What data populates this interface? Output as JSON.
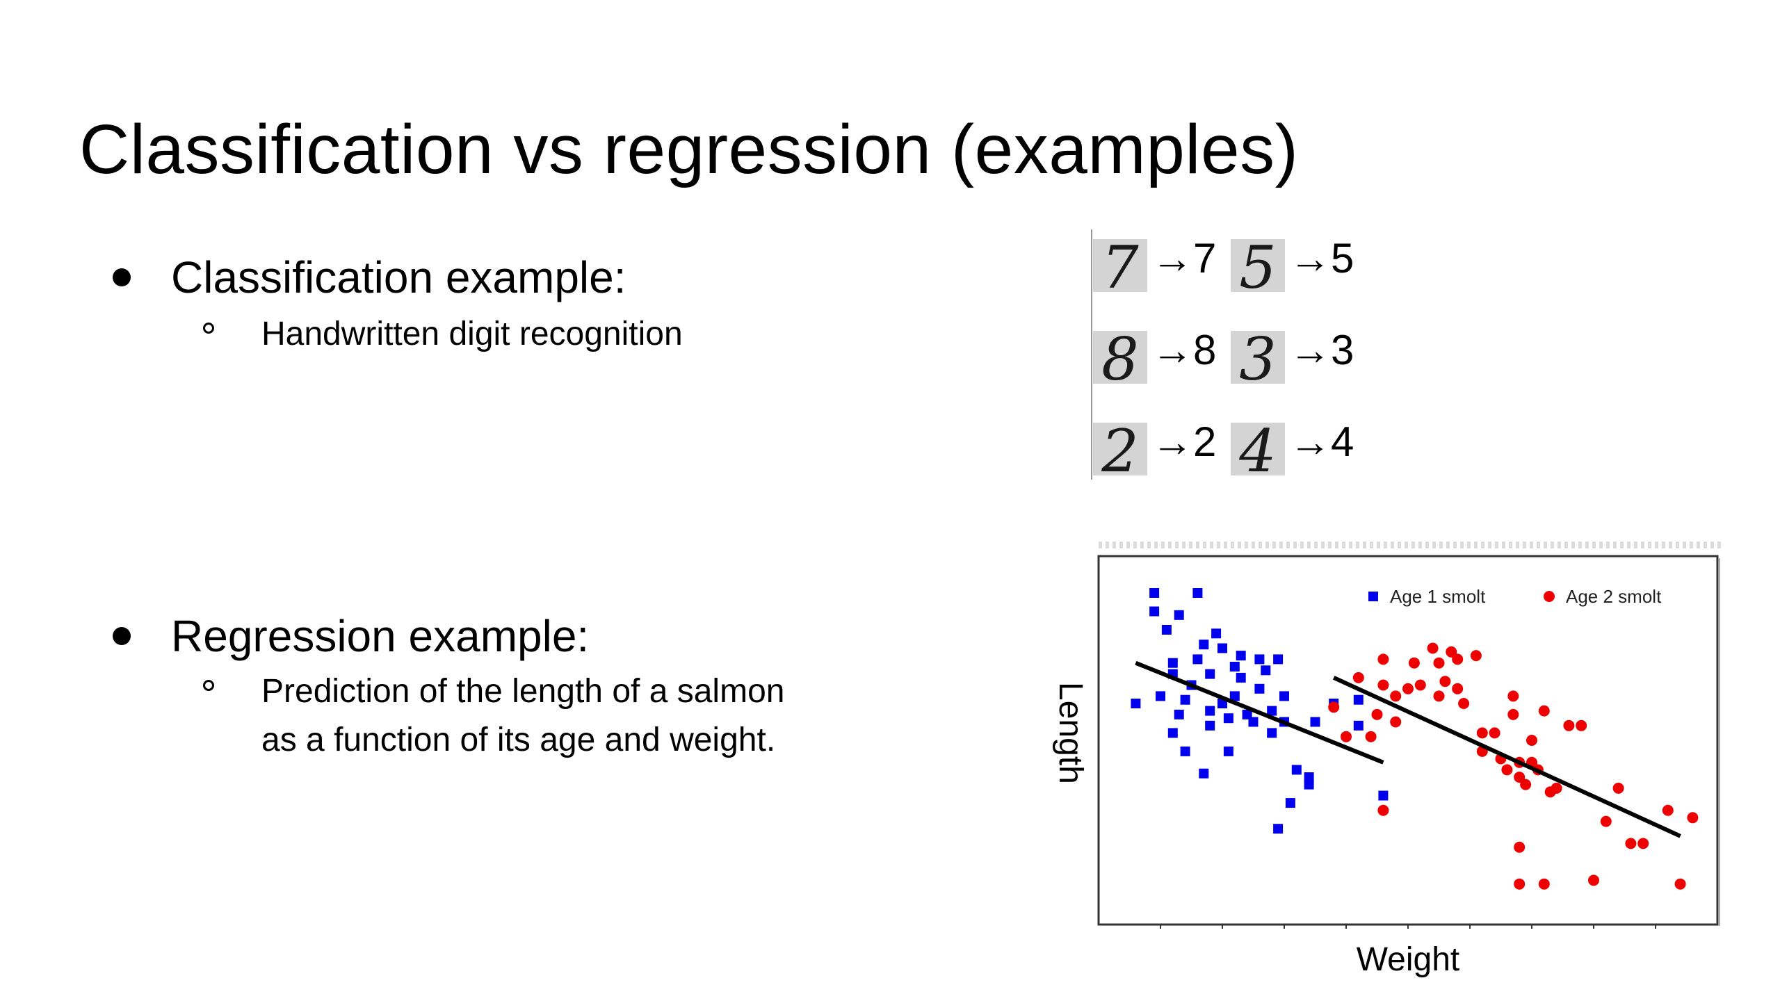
{
  "slide": {
    "title": "Classification vs regression (examples)"
  },
  "bullets": [
    {
      "label": "Classification example:",
      "sub": [
        "Handwritten digit recognition"
      ]
    },
    {
      "label": "Regression example:",
      "sub": [
        "Prediction of the length of a salmon",
        "as a function of its age and weight."
      ]
    }
  ],
  "digit_examples": [
    {
      "image": "7",
      "label": "7"
    },
    {
      "image": "5",
      "label": "5"
    },
    {
      "image": "8",
      "label": "8"
    },
    {
      "image": "3",
      "label": "3"
    },
    {
      "image": "2",
      "label": "2"
    },
    {
      "image": "4",
      "label": "4"
    }
  ],
  "arrow": "→",
  "chart_data": {
    "type": "scatter",
    "xlabel": "Weight",
    "ylabel": "Length",
    "xlim": [
      0,
      100
    ],
    "ylim": [
      0,
      100
    ],
    "grid": false,
    "legend_position": "top-right",
    "series": [
      {
        "name": "Age 1 smolt",
        "color": "#0000ee",
        "marker": "square",
        "points": [
          [
            9,
            90
          ],
          [
            11,
            80
          ],
          [
            13,
            84
          ],
          [
            9,
            85
          ],
          [
            16,
            90
          ],
          [
            6,
            60
          ],
          [
            10,
            62
          ],
          [
            12,
            71
          ],
          [
            12,
            68
          ],
          [
            14,
            61
          ],
          [
            13,
            57
          ],
          [
            15,
            65
          ],
          [
            16,
            72
          ],
          [
            17,
            76
          ],
          [
            18,
            68
          ],
          [
            18,
            58
          ],
          [
            18,
            54
          ],
          [
            19,
            79
          ],
          [
            20,
            75
          ],
          [
            20,
            60
          ],
          [
            21,
            56
          ],
          [
            21,
            47
          ],
          [
            22,
            70
          ],
          [
            22,
            62
          ],
          [
            23,
            67
          ],
          [
            23,
            73
          ],
          [
            24,
            57
          ],
          [
            25,
            55
          ],
          [
            26,
            72
          ],
          [
            26,
            64
          ],
          [
            27,
            69
          ],
          [
            28,
            58
          ],
          [
            28,
            52
          ],
          [
            29,
            72
          ],
          [
            30,
            62
          ],
          [
            30,
            55
          ],
          [
            31,
            33
          ],
          [
            32,
            42
          ],
          [
            34,
            40
          ],
          [
            34,
            38
          ],
          [
            35,
            55
          ],
          [
            17,
            41
          ],
          [
            14,
            47
          ],
          [
            12,
            52
          ],
          [
            29,
            26
          ],
          [
            38,
            60
          ],
          [
            42,
            61
          ],
          [
            42,
            54
          ],
          [
            46,
            35
          ]
        ]
      },
      {
        "name": "Age 2 smolt",
        "color": "#ee0000",
        "marker": "circle",
        "points": [
          [
            38,
            59
          ],
          [
            40,
            51
          ],
          [
            42,
            67
          ],
          [
            44,
            51
          ],
          [
            45,
            57
          ],
          [
            46,
            65
          ],
          [
            46,
            72
          ],
          [
            48,
            55
          ],
          [
            48,
            62
          ],
          [
            50,
            64
          ],
          [
            51,
            71
          ],
          [
            52,
            65
          ],
          [
            54,
            75
          ],
          [
            55,
            71
          ],
          [
            55,
            62
          ],
          [
            56,
            66
          ],
          [
            57,
            74
          ],
          [
            58,
            72
          ],
          [
            58,
            64
          ],
          [
            59,
            60
          ],
          [
            61,
            73
          ],
          [
            62,
            52
          ],
          [
            62,
            47
          ],
          [
            64,
            52
          ],
          [
            65,
            45
          ],
          [
            66,
            42
          ],
          [
            67,
            62
          ],
          [
            67,
            57
          ],
          [
            68,
            44
          ],
          [
            68,
            40
          ],
          [
            69,
            38
          ],
          [
            70,
            44
          ],
          [
            70,
            50
          ],
          [
            71,
            42
          ],
          [
            72,
            58
          ],
          [
            73,
            36
          ],
          [
            74,
            37
          ],
          [
            76,
            54
          ],
          [
            78,
            54
          ],
          [
            82,
            28
          ],
          [
            84,
            37
          ],
          [
            86,
            22
          ],
          [
            88,
            22
          ],
          [
            68,
            11
          ],
          [
            72,
            11
          ],
          [
            68,
            21
          ],
          [
            80,
            12
          ],
          [
            46,
            31
          ],
          [
            92,
            31
          ],
          [
            94,
            11
          ],
          [
            96,
            29
          ]
        ]
      }
    ],
    "fit_lines": [
      {
        "series": "Age 1 smolt",
        "from": [
          6,
          71
        ],
        "to": [
          46,
          44
        ]
      },
      {
        "series": "Age 2 smolt",
        "from": [
          38,
          67
        ],
        "to": [
          94,
          24
        ]
      }
    ]
  }
}
